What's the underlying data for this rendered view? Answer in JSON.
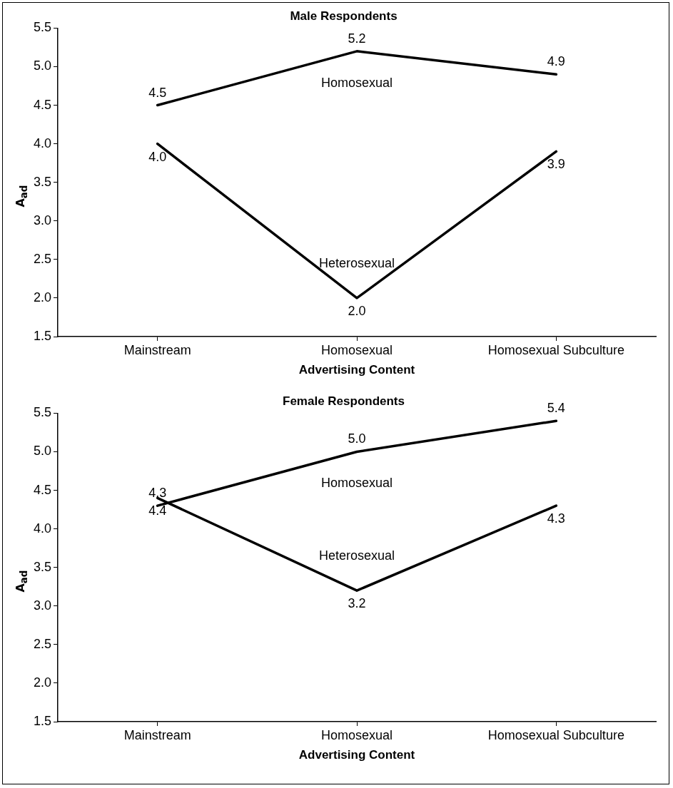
{
  "chart_data": [
    {
      "type": "line",
      "title": "Male Respondents",
      "xlabel": "Advertising Content",
      "ylabel": "A$_{ad}$",
      "categories": [
        "Mainstream",
        "Homosexual",
        "Homosexual Subculture"
      ],
      "series": [
        {
          "name": "Homosexual",
          "color": "#000000",
          "values": [
            4.5,
            5.2,
            4.9
          ],
          "value_labels": [
            "4.5",
            "5.2",
            "4.9"
          ]
        },
        {
          "name": "Heterosexual",
          "color": "#000000",
          "values": [
            4.0,
            2.0,
            3.9
          ],
          "value_labels": [
            "4.0",
            "2.0",
            "3.9"
          ]
        }
      ],
      "ylim": [
        1.5,
        5.5
      ],
      "yticks": [
        {
          "value": 1.5,
          "label": "1.5"
        },
        {
          "value": 2,
          "label": "2.0"
        },
        {
          "value": 2.5,
          "label": "2.5"
        },
        {
          "value": 3,
          "label": "3.0"
        },
        {
          "value": 3.5,
          "label": "3.5"
        },
        {
          "value": 4,
          "label": "4.0"
        },
        {
          "value": 4.5,
          "label": "4.5"
        },
        {
          "value": 5,
          "label": "5.0"
        },
        {
          "value": 5.5,
          "label": "5.5"
        }
      ],
      "grid": false,
      "legend": false,
      "marker": "none",
      "line_style": "solid"
    },
    {
      "type": "line",
      "title": "Female Respondents",
      "xlabel": "Advertising Content",
      "ylabel": "A$_{ad}$",
      "categories": [
        "Mainstream",
        "Homosexual",
        "Homosexual Subculture"
      ],
      "series": [
        {
          "name": "Homosexual",
          "color": "#000000",
          "values": [
            4.3,
            5.0,
            5.4
          ],
          "value_labels": [
            "4.3",
            "5.0",
            "5.4"
          ]
        },
        {
          "name": "Heterosexual",
          "color": "#000000",
          "values": [
            4.4,
            3.2,
            4.3
          ],
          "value_labels": [
            "4.4",
            "3.2",
            "4.3"
          ]
        }
      ],
      "ylim": [
        1.5,
        5.5
      ],
      "yticks": [
        {
          "value": 1.5,
          "label": "1.5"
        },
        {
          "value": 2,
          "label": "2.0"
        },
        {
          "value": 2.5,
          "label": "2.5"
        },
        {
          "value": 3,
          "label": "3.0"
        },
        {
          "value": 3.5,
          "label": "3.5"
        },
        {
          "value": 4,
          "label": "4.0"
        },
        {
          "value": 4.5,
          "label": "4.5"
        },
        {
          "value": 5,
          "label": "5.0"
        },
        {
          "value": 5.5,
          "label": "5.5"
        }
      ],
      "grid": false,
      "legend": false,
      "marker": "none",
      "line_style": "solid"
    }
  ]
}
